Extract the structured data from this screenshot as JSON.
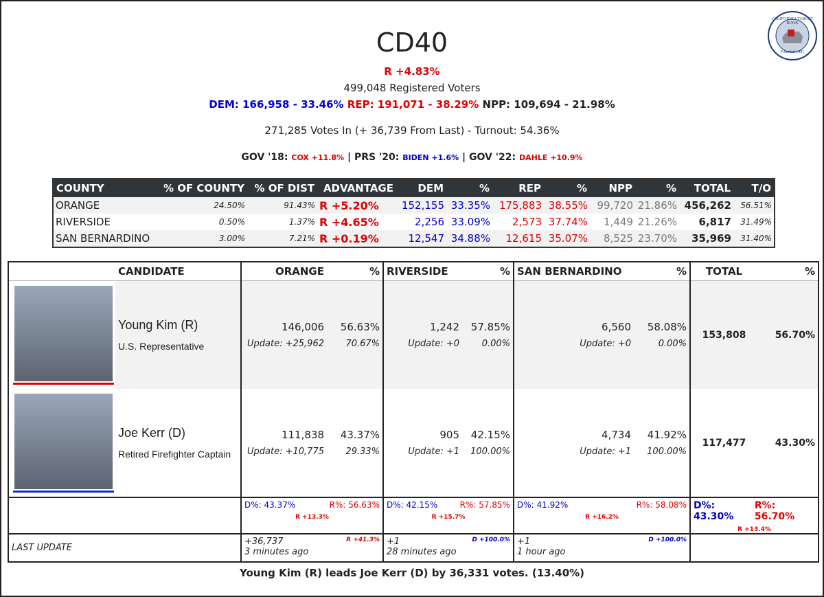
{
  "header": {
    "title": "CD40",
    "logo": {
      "name": "CALIFORNIA TARGET BOOK",
      "founded": "Founded 1991"
    },
    "advantage": "R +4.83%",
    "registered": "499,048 Registered Voters",
    "registration": {
      "dem": "DEM: 166,958 - 33.46%",
      "rep": "REP: 191,071 - 38.29%",
      "npp": "NPP: 109,694 - 21.98%"
    },
    "votes_in": "271,285 Votes In (+ 36,739 From Last) - Turnout: 54.36%",
    "separator": "|",
    "past_races": [
      {
        "label": "GOV '18:",
        "result": "COX +11.8%"
      },
      {
        "label": "PRS '20:",
        "result": "BIDEN +1.6%"
      },
      {
        "label": "GOV '22:",
        "result": "DAHLE +10.9%"
      }
    ]
  },
  "county_table": {
    "columns": [
      "COUNTY",
      "% OF COUNTY",
      "% OF DIST",
      "ADVANTAGE",
      "DEM",
      "%",
      "REP",
      "%",
      "NPP",
      "%",
      "TOTAL",
      "T/O"
    ],
    "rows": [
      [
        "ORANGE",
        "24.50%",
        "91.43%",
        "R +5.20%",
        "152,155",
        "33.35%",
        "175,883",
        "38.55%",
        "99,720",
        "21.86%",
        "456,262",
        "56.51%"
      ],
      [
        "RIVERSIDE",
        "0.50%",
        "1.37%",
        "R +4.65%",
        "2,256",
        "33.09%",
        "2,573",
        "37.74%",
        "1,449",
        "21.26%",
        "6,817",
        "31.49%"
      ],
      [
        "SAN BERNARDINO",
        "3.00%",
        "7.21%",
        "R +0.19%",
        "12,547",
        "34.88%",
        "12,615",
        "35.07%",
        "8,525",
        "23.70%",
        "35,969",
        "31.40%"
      ]
    ]
  },
  "results_table": {
    "columns": [
      "CANDIDATE",
      "ORANGE",
      "%",
      "RIVERSIDE",
      "%",
      "SAN BERNARDINO",
      "%",
      "TOTAL",
      "%"
    ],
    "candidates": [
      {
        "name": "Young Kim (R)",
        "title": "U.S. Representative",
        "counties": [
          {
            "votes": "146,006",
            "pct": "56.63%",
            "update": "Update: +25,962",
            "update_pct": "70.67%"
          },
          {
            "votes": "1,242",
            "pct": "57.85%",
            "update": "Update: +0",
            "update_pct": "0.00%"
          },
          {
            "votes": "6,560",
            "pct": "58.08%",
            "update": "Update: +0",
            "update_pct": "0.00%"
          }
        ],
        "total": "153,808",
        "total_pct": "56.70%"
      },
      {
        "name": "Joe Kerr (D)",
        "title": "Retired Firefighter Captain",
        "counties": [
          {
            "votes": "111,838",
            "pct": "43.37%",
            "update": "Update: +10,775",
            "update_pct": "29.33%"
          },
          {
            "votes": "905",
            "pct": "42.15%",
            "update": "Update: +1",
            "update_pct": "100.00%"
          },
          {
            "votes": "4,734",
            "pct": "41.92%",
            "update": "Update: +1",
            "update_pct": "100.00%"
          }
        ],
        "total": "117,477",
        "total_pct": "43.30%"
      }
    ],
    "summary": {
      "counties": [
        {
          "dem": "D%: 43.37%",
          "rep": "R%: 56.63%",
          "margin": "R +13.3%"
        },
        {
          "dem": "D%: 42.15%",
          "rep": "R%: 57.85%",
          "margin": "R +15.7%"
        },
        {
          "dem": "D%: 41.92%",
          "rep": "R%: 58.08%",
          "margin": "R +16.2%"
        }
      ],
      "total": {
        "dem": "D%: 43.30%",
        "rep": "R%: 56.70%",
        "margin": "R +13.4%"
      }
    },
    "last_update": {
      "label": "LAST UPDATE",
      "counties": [
        {
          "votes": "+36,737",
          "shift": "R +41.3%",
          "time": "3 minutes ago"
        },
        {
          "votes": "+1",
          "shift": "D +100.0%",
          "time": "28 minutes ago"
        },
        {
          "votes": "+1",
          "shift": "D +100.0%",
          "time": "1 hour ago"
        }
      ]
    }
  },
  "footer": "Young Kim (R) leads Joe Kerr (D) by 36,331 votes. (13.40%)"
}
